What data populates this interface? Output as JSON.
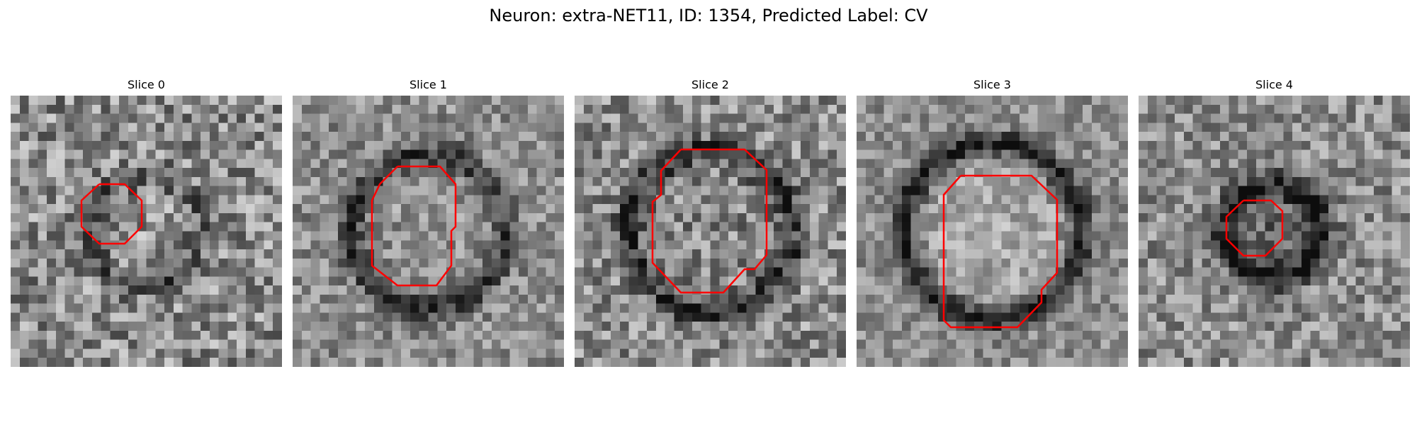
{
  "figure": {
    "title": "Neuron: extra-NET11, ID: 1354, Predicted Label: CV",
    "contour_color": "#ff0000"
  },
  "panels": [
    {
      "title": "Slice 0",
      "ring_radius": 0.2,
      "ring_strength": 0.35,
      "center_brightness": 0.05,
      "noise": 0.55
    },
    {
      "title": "Slice 1",
      "ring_radius": 0.28,
      "ring_strength": 0.55,
      "center_brightness": 0.05,
      "noise": 0.4
    },
    {
      "title": "Slice 2",
      "ring_radius": 0.3,
      "ring_strength": 0.55,
      "center_brightness": -0.05,
      "noise": 0.5
    },
    {
      "title": "Slice 3",
      "ring_radius": 0.32,
      "ring_strength": 0.75,
      "center_brightness": 0.25,
      "noise": 0.35
    },
    {
      "title": "Slice 4",
      "ring_radius": 0.18,
      "ring_strength": 0.7,
      "center_brightness": -0.35,
      "noise": 0.45
    }
  ]
}
